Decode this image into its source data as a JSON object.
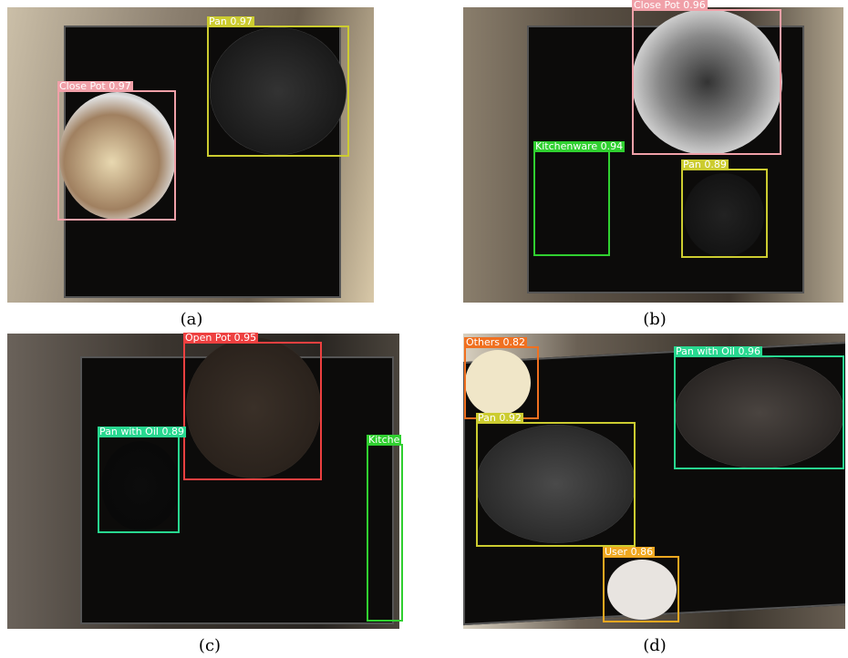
{
  "panels": [
    {
      "caption": "(a)",
      "detections": [
        {
          "label": "Pan 0.97"
        },
        {
          "label": "Close Pot 0.97"
        }
      ]
    },
    {
      "caption": "(b)",
      "detections": [
        {
          "label": "Close Pot 0.96"
        },
        {
          "label": "Kitchenware 0.94"
        },
        {
          "label": "Pan 0.89"
        }
      ]
    },
    {
      "caption": "(c)",
      "detections": [
        {
          "label": "Open Pot 0.95"
        },
        {
          "label": "Pan with Oil 0.89"
        },
        {
          "label": "Kitche"
        }
      ]
    },
    {
      "caption": "(d)",
      "detections": [
        {
          "label": "Others 0.82"
        },
        {
          "label": "Pan with Oil 0.96"
        },
        {
          "label": "Pan 0.92"
        },
        {
          "label": "User 0.86"
        }
      ]
    }
  ]
}
